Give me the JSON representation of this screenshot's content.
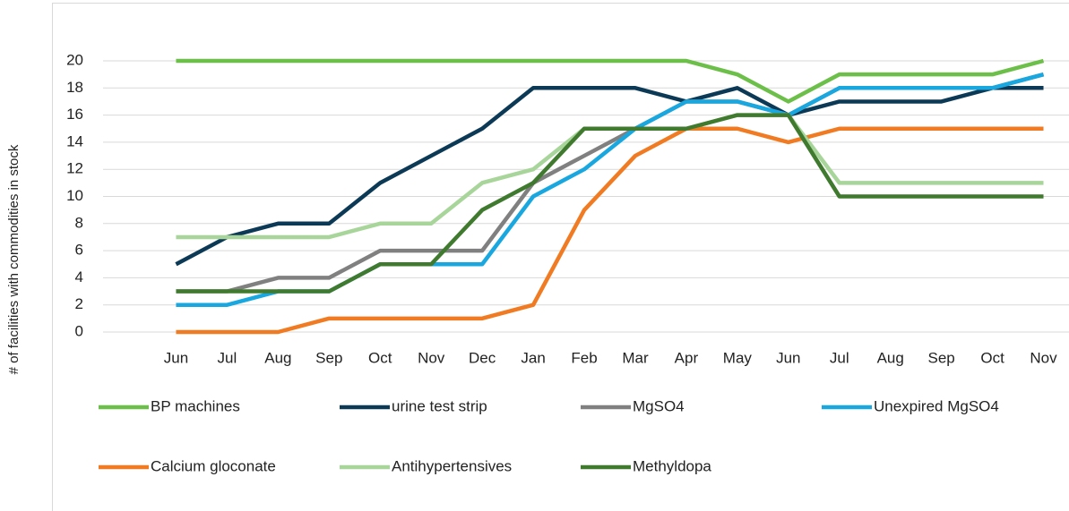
{
  "chart_data": {
    "type": "line",
    "y_label": "# of facilities with commodities in stock",
    "categories": [
      "Jun",
      "Jul",
      "Aug",
      "Sep",
      "Oct",
      "Nov",
      "Dec",
      "Jan",
      "Feb",
      "Mar",
      "Apr",
      "May",
      "Jun",
      "Jul",
      "Aug",
      "Sep",
      "Oct",
      "Nov"
    ],
    "ylim": [
      0,
      20
    ],
    "yticks": [
      0,
      2,
      4,
      6,
      8,
      10,
      12,
      14,
      16,
      18,
      20
    ],
    "grid": true,
    "legend": "bottom",
    "series": [
      {
        "name": "BP machines",
        "color": "#6cbf48",
        "values": [
          20,
          20,
          20,
          20,
          20,
          20,
          20,
          20,
          20,
          20,
          20,
          19,
          17,
          19,
          19,
          19,
          19,
          20
        ]
      },
      {
        "name": "urine test strip",
        "color": "#0c3a56",
        "values": [
          5,
          7,
          8,
          8,
          11,
          13,
          15,
          18,
          18,
          18,
          17,
          18,
          16,
          17,
          17,
          17,
          18,
          18
        ]
      },
      {
        "name": "MgSO4",
        "color": "#808080",
        "values": [
          3,
          3,
          4,
          4,
          6,
          6,
          6,
          11,
          13,
          15,
          17,
          17,
          16,
          18,
          18,
          18,
          18,
          19
        ]
      },
      {
        "name": "Unexpired MgSO4",
        "color": "#19a7e0",
        "values": [
          2,
          2,
          3,
          3,
          5,
          5,
          5,
          10,
          12,
          15,
          17,
          17,
          16,
          18,
          18,
          18,
          18,
          19
        ]
      },
      {
        "name": "Calcium gloconate",
        "color": "#f07b22",
        "values": [
          0,
          0,
          0,
          1,
          1,
          1,
          1,
          2,
          9,
          13,
          15,
          15,
          14,
          15,
          15,
          15,
          15,
          15
        ]
      },
      {
        "name": "Antihypertensives",
        "color": "#a8d59a",
        "values": [
          7,
          7,
          7,
          7,
          8,
          8,
          11,
          12,
          15,
          15,
          15,
          16,
          16,
          11,
          11,
          11,
          11,
          11
        ]
      },
      {
        "name": "Methyldopa",
        "color": "#3f7a2f",
        "values": [
          3,
          3,
          3,
          3,
          5,
          5,
          9,
          11,
          15,
          15,
          15,
          16,
          16,
          10,
          10,
          10,
          10,
          10
        ]
      }
    ]
  }
}
